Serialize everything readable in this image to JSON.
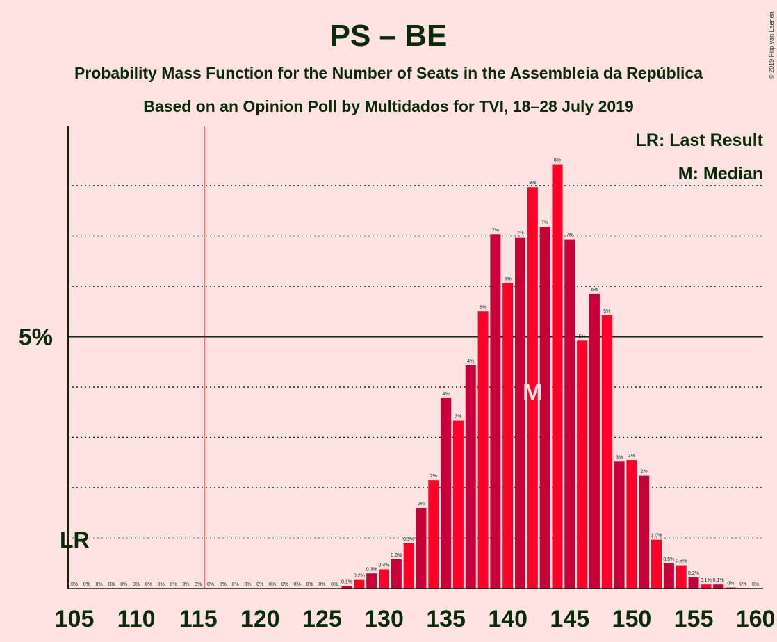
{
  "header": {
    "title": "PS – BE",
    "subtitle_1": "Probability Mass Function for the Number of Seats in the Assembleia da República",
    "subtitle_2": "Based on an Opinion Poll by Multidados for TVI, 18–28 July 2019",
    "copyright": "© 2019 Filip van Laenen"
  },
  "legend": {
    "last_result": "LR: Last Result",
    "median": "M: Median"
  },
  "markers": {
    "last_result_label": "LR",
    "last_result_seat": 116,
    "median_label": "M",
    "median_seat": 142
  },
  "colors": {
    "background": "#FFE2E2",
    "bar_dark": "#C70039",
    "bar_light": "#FF0028",
    "text": "#0a2a0a",
    "last_result_line": "#FF0000"
  },
  "chart_data": {
    "type": "bar",
    "title": "PS – BE",
    "xlabel": "",
    "ylabel": "",
    "x_ticks": [
      105,
      110,
      115,
      120,
      125,
      130,
      135,
      140,
      145,
      150,
      155,
      160
    ],
    "y_ticks": [
      {
        "value": 5,
        "label": "5%"
      }
    ],
    "y_gridlines": [
      1,
      2,
      3,
      4,
      5,
      6,
      7,
      8
    ],
    "ylim": [
      0,
      9
    ],
    "grid": "dotted horizontal",
    "legend_placement": "top-right",
    "seats": [
      105,
      106,
      107,
      108,
      109,
      110,
      111,
      112,
      113,
      114,
      115,
      116,
      117,
      118,
      119,
      120,
      121,
      122,
      123,
      124,
      125,
      126,
      127,
      128,
      129,
      130,
      131,
      132,
      133,
      134,
      135,
      136,
      137,
      138,
      139,
      140,
      141,
      142,
      143,
      144,
      145,
      146,
      147,
      148,
      149,
      150,
      151,
      152,
      153,
      154,
      155,
      156,
      157,
      158,
      159,
      160
    ],
    "values": [
      0,
      0,
      0,
      0,
      0,
      0,
      0,
      0,
      0,
      0,
      0,
      0,
      0,
      0,
      0,
      0,
      0,
      0,
      0,
      0,
      0,
      0,
      0.05,
      0.17,
      0.3,
      0.38,
      0.58,
      0.9,
      1.6,
      2.15,
      3.78,
      3.33,
      4.43,
      5.5,
      7.03,
      6.06,
      6.97,
      7.97,
      7.18,
      8.42,
      6.93,
      4.92,
      5.85,
      5.42,
      2.52,
      2.55,
      2.24,
      0.97,
      0.5,
      0.46,
      0.22,
      0.08,
      0.08,
      0.02,
      0.01,
      0
    ],
    "labels": [
      "0%",
      "0%",
      "0%",
      "0%",
      "0%",
      "0%",
      "0%",
      "0%",
      "0%",
      "0%",
      "0%",
      "0%",
      "0%",
      "0%",
      "0%",
      "0%",
      "0%",
      "0%",
      "0%",
      "0%",
      "0%",
      "0%",
      "0.1%",
      "0.2%",
      "0.3%",
      "0.4%",
      "0.6%",
      "0.9%",
      "2%",
      "2%",
      "4%",
      "3%",
      "4%",
      "6%",
      "7%",
      "6%",
      "7%",
      "8%",
      "7%",
      "8%",
      "7%",
      "5%",
      "6%",
      "5%",
      "3%",
      "3%",
      "2%",
      "1.0%",
      "0.5%",
      "0.5%",
      "0.2%",
      "0.1%",
      "0.1%",
      "0%",
      "0%",
      "0%"
    ]
  }
}
